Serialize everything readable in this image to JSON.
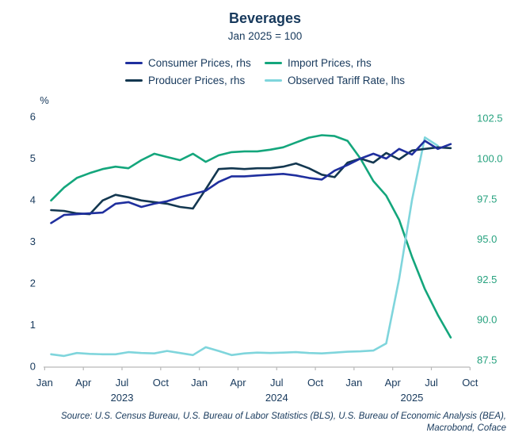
{
  "chart": {
    "title": "Beverages",
    "subtitle": "Jan 2025 = 100",
    "pct_label": "%",
    "source_line1": "Source: U.S. Census Bureau, U.S. Bureau of Labor Statistics (BLS), U.S. Bureau of Economic Analysis (BEA),",
    "source_line2": "Macrobond, Coface"
  },
  "chart_data": {
    "type": "line",
    "title": "Beverages",
    "subtitle": "Jan 2025 = 100",
    "x": [
      "Jan 2023",
      "Feb 2023",
      "Mar 2023",
      "Apr 2023",
      "May 2023",
      "Jun 2023",
      "Jul 2023",
      "Aug 2023",
      "Sep 2023",
      "Oct 2023",
      "Nov 2023",
      "Dec 2023",
      "Jan 2024",
      "Feb 2024",
      "Mar 2024",
      "Apr 2024",
      "May 2024",
      "Jun 2024",
      "Jul 2024",
      "Aug 2024",
      "Sep 2024",
      "Oct 2024",
      "Nov 2024",
      "Dec 2024",
      "Jan 2025",
      "Feb 2025",
      "Mar 2025",
      "Apr 2025",
      "May 2025",
      "Jun 2025",
      "Jul 2025",
      "Aug 2025"
    ],
    "series": [
      {
        "name": "Consumer Prices, rhs",
        "axis": "rhs",
        "color": "#1f2f9e",
        "values": [
          96.0,
          96.5,
          96.55,
          96.6,
          96.65,
          97.2,
          97.3,
          97.0,
          97.2,
          97.35,
          97.6,
          97.8,
          98.0,
          98.55,
          98.9,
          98.9,
          98.95,
          99.0,
          99.05,
          98.95,
          98.8,
          98.7,
          99.25,
          99.6,
          100.0,
          100.3,
          100.0,
          100.6,
          100.25,
          101.1,
          100.6,
          100.9
        ]
      },
      {
        "name": "Import Prices, rhs",
        "axis": "rhs",
        "color": "#14a67c",
        "values": [
          97.4,
          98.2,
          98.8,
          99.1,
          99.35,
          99.5,
          99.4,
          99.9,
          100.3,
          100.1,
          99.9,
          100.3,
          99.8,
          100.2,
          100.4,
          100.45,
          100.45,
          100.55,
          100.7,
          101.0,
          101.3,
          101.45,
          101.4,
          101.1,
          100.0,
          98.6,
          97.7,
          96.2,
          93.9,
          91.9,
          90.3,
          88.9
        ]
      },
      {
        "name": "Producer Prices, rhs",
        "axis": "rhs",
        "color": "#133750",
        "values": [
          96.8,
          96.75,
          96.6,
          96.55,
          97.4,
          97.75,
          97.6,
          97.4,
          97.3,
          97.2,
          97.0,
          96.9,
          98.1,
          99.35,
          99.4,
          99.35,
          99.4,
          99.4,
          99.5,
          99.7,
          99.4,
          99.0,
          98.85,
          99.75,
          100.0,
          99.75,
          100.35,
          99.95,
          100.5,
          100.6,
          100.7,
          100.65
        ]
      },
      {
        "name": "Observed Tariff Rate, lhs",
        "axis": "lhs",
        "color": "#7fd5dc",
        "values": [
          0.29,
          0.25,
          0.32,
          0.3,
          0.29,
          0.29,
          0.34,
          0.32,
          0.31,
          0.37,
          0.32,
          0.27,
          0.46,
          0.37,
          0.27,
          0.31,
          0.33,
          0.32,
          0.33,
          0.34,
          0.32,
          0.31,
          0.33,
          0.35,
          0.36,
          0.38,
          0.55,
          2.1,
          4.0,
          5.5,
          5.3,
          null
        ]
      }
    ],
    "left_axis": {
      "label": "%",
      "min": 0,
      "max": 6,
      "ticks": [
        6,
        5,
        4,
        3,
        2,
        1,
        0
      ],
      "text_color": "#17395c"
    },
    "right_axis": {
      "min": 87.5,
      "max": 102.5,
      "ticks": [
        102.5,
        100.0,
        97.5,
        95.0,
        92.5,
        90.0,
        87.5
      ],
      "text_color": "#27a27f"
    },
    "x_tick_labels": [
      "Jan",
      "Apr",
      "Jul",
      "Oct",
      "Jan",
      "Apr",
      "Jul",
      "Oct",
      "Jan",
      "Apr",
      "Jul",
      "Oct"
    ],
    "year_labels": [
      "2023",
      "2024",
      "2025"
    ],
    "grid": false,
    "legend_position": "top",
    "axis_line_color": "#b9b9b9"
  }
}
